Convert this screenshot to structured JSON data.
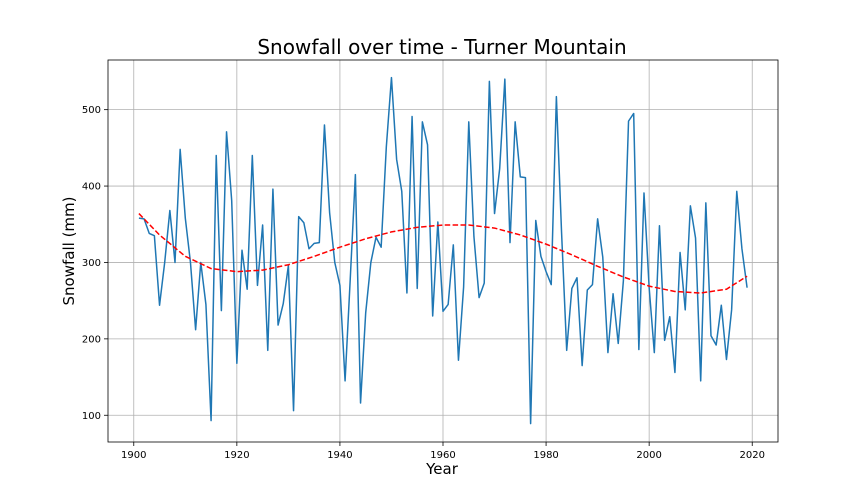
{
  "chart_data": {
    "type": "line",
    "title": "Snowfall over time - Turner Mountain",
    "xlabel": "Year",
    "ylabel": "Snowfall (mm)",
    "xlim": [
      1895,
      2025
    ],
    "ylim": [
      65,
      565
    ],
    "xticks": [
      1900,
      1920,
      1940,
      1960,
      1980,
      2000,
      2020
    ],
    "yticks": [
      100,
      200,
      300,
      400,
      500
    ],
    "grid": true,
    "series": [
      {
        "type": "line",
        "color": "#1f77b4",
        "style": "solid",
        "x": [
          1901,
          1902,
          1903,
          1904,
          1905,
          1906,
          1907,
          1908,
          1909,
          1910,
          1911,
          1912,
          1913,
          1914,
          1915,
          1916,
          1917,
          1918,
          1919,
          1920,
          1921,
          1922,
          1923,
          1924,
          1925,
          1926,
          1927,
          1928,
          1929,
          1930,
          1931,
          1932,
          1933,
          1934,
          1935,
          1936,
          1937,
          1938,
          1939,
          1940,
          1941,
          1942,
          1943,
          1944,
          1945,
          1946,
          1947,
          1948,
          1949,
          1950,
          1951,
          1952,
          1953,
          1954,
          1955,
          1956,
          1957,
          1958,
          1959,
          1960,
          1961,
          1962,
          1963,
          1964,
          1965,
          1966,
          1967,
          1968,
          1969,
          1970,
          1971,
          1972,
          1973,
          1974,
          1975,
          1976,
          1977,
          1978,
          1979,
          1980,
          1981,
          1982,
          1983,
          1984,
          1985,
          1986,
          1987,
          1988,
          1989,
          1990,
          1991,
          1992,
          1993,
          1994,
          1995,
          1996,
          1997,
          1998,
          1999,
          2000,
          2001,
          2002,
          2003,
          2004,
          2005,
          2006,
          2007,
          2008,
          2009,
          2010,
          2011,
          2012,
          2013,
          2014,
          2015,
          2016,
          2017,
          2018,
          2019
        ],
        "y": [
          358,
          357,
          338,
          335,
          244,
          300,
          368,
          300,
          448,
          358,
          300,
          212,
          300,
          245,
          93,
          440,
          237,
          471,
          381,
          168,
          316,
          265,
          440,
          270,
          349,
          185,
          396,
          218,
          246,
          296,
          106,
          360,
          352,
          318,
          325,
          326,
          480,
          365,
          300,
          270,
          145,
          278,
          415,
          116,
          234,
          300,
          333,
          320,
          451,
          542,
          435,
          393,
          260,
          491,
          266,
          484,
          454,
          230,
          353,
          236,
          245,
          323,
          172,
          268,
          484,
          334,
          254,
          273,
          537,
          364,
          423,
          540,
          326,
          484,
          412,
          411,
          89,
          355,
          308,
          288,
          271,
          517,
          340,
          185,
          266,
          280,
          165,
          264,
          271,
          357,
          307,
          182,
          259,
          194,
          276,
          485,
          495,
          186,
          391,
          267,
          182,
          348,
          198,
          229,
          156,
          313,
          238,
          374,
          332,
          145,
          378,
          204,
          192,
          244,
          173,
          238,
          393,
          318,
          267
        ]
      },
      {
        "type": "line",
        "color": "#ff0000",
        "style": "dashed",
        "x": [
          1901,
          1905,
          1910,
          1915,
          1920,
          1925,
          1930,
          1935,
          1940,
          1945,
          1950,
          1955,
          1960,
          1965,
          1970,
          1975,
          1980,
          1985,
          1990,
          1995,
          2000,
          2005,
          2010,
          2015,
          2019
        ],
        "y": [
          364,
          336,
          308,
          292,
          288,
          290,
          297,
          308,
          320,
          331,
          340,
          346,
          349,
          349,
          345,
          336,
          324,
          310,
          295,
          281,
          269,
          262,
          260,
          265,
          282
        ]
      }
    ]
  }
}
